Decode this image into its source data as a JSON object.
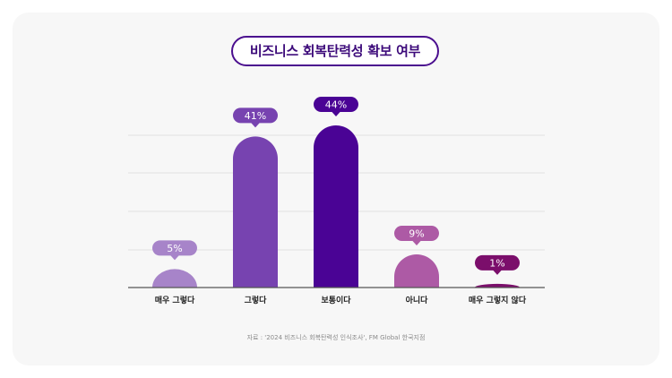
{
  "title": "비즈니스 회복탄력성 확보 여부",
  "source": "자료 : '2024 비즈니스 회복탄력성 인식조사', FM Global 한국지점",
  "chart_data": {
    "type": "bar",
    "title": "비즈니스 회복탄력성 확보 여부",
    "categories": [
      "매우 그렇다",
      "그렇다",
      "보통이다",
      "아니다",
      "매우 그렇지 않다"
    ],
    "values": [
      5,
      41,
      44,
      9,
      1
    ],
    "value_labels": [
      "5%",
      "41%",
      "44%",
      "9%",
      "1%"
    ],
    "bar_colors": [
      "#a784c9",
      "#7743b0",
      "#4a0395",
      "#ad5aa5",
      "#7b0e6b"
    ],
    "ylim": [
      0,
      44
    ],
    "grid": true,
    "legend": "none"
  }
}
